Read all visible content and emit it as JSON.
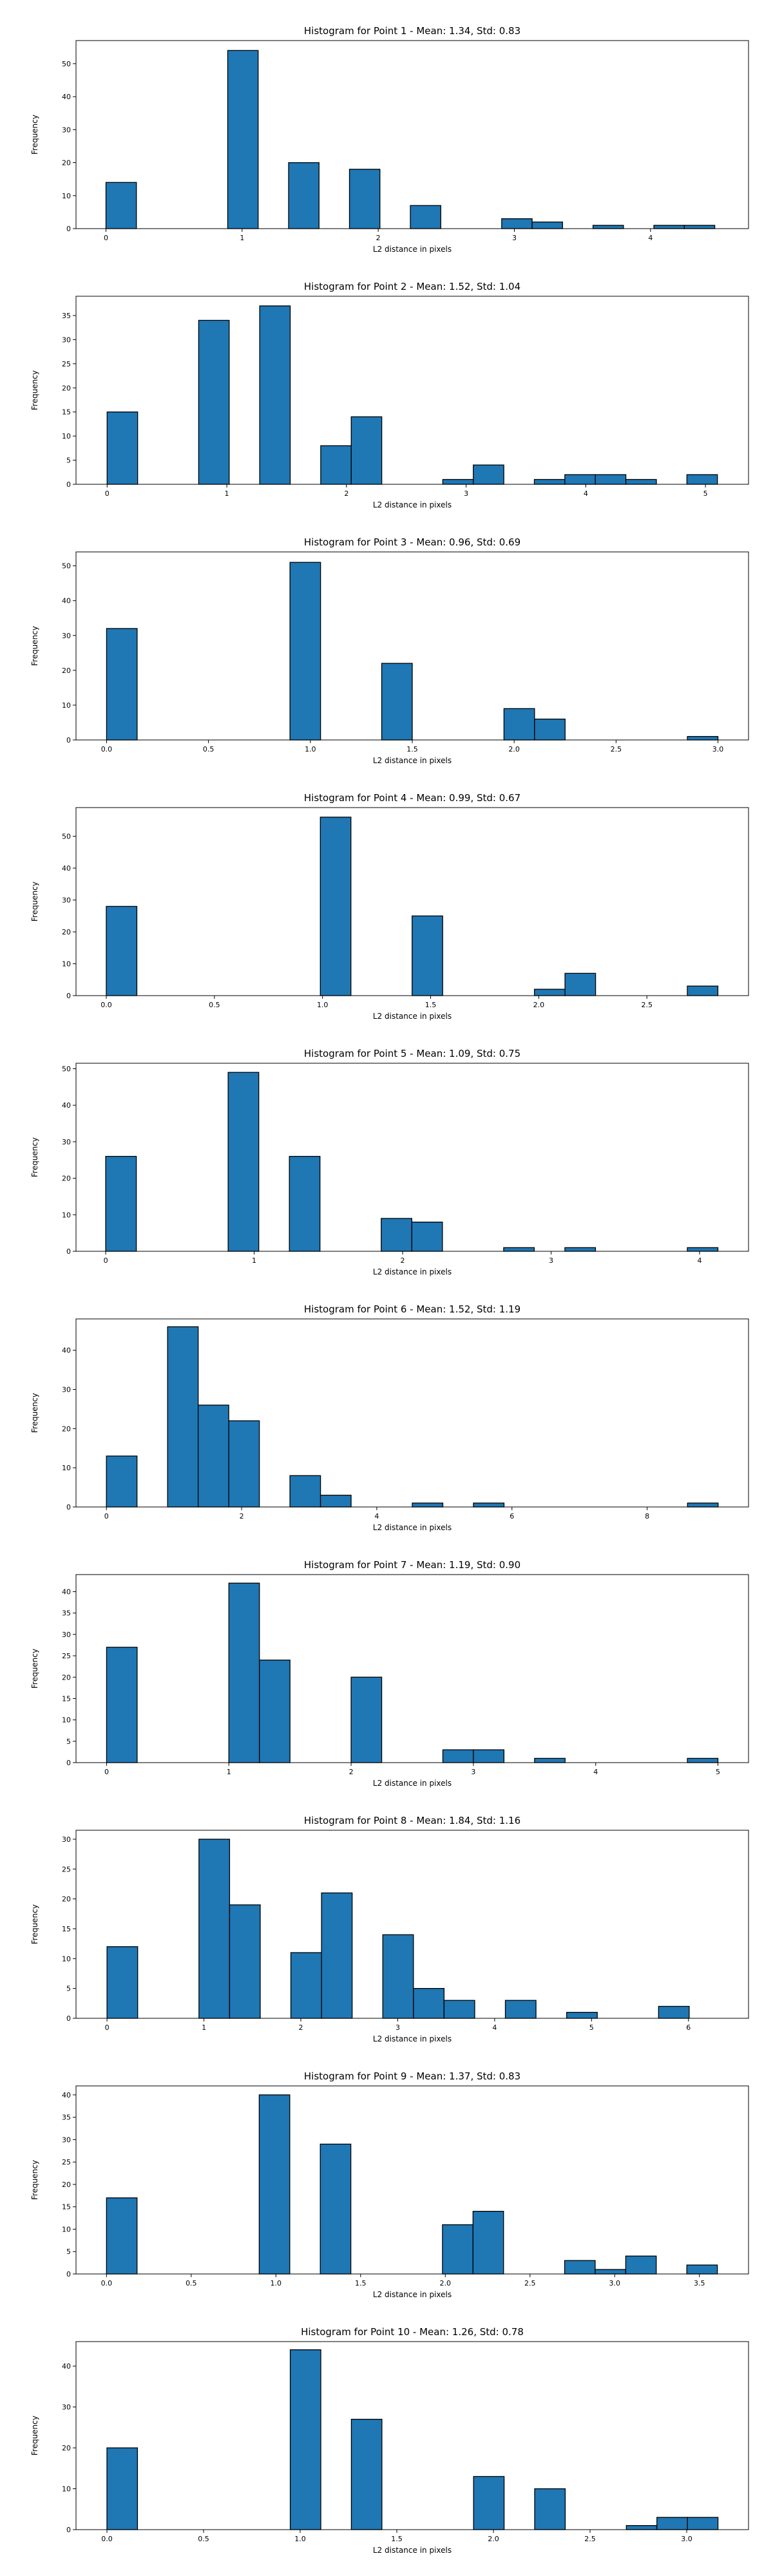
{
  "figure": {
    "bar_color": "#1f77b4",
    "edge_color": "#000000"
  },
  "chart_data": [
    {
      "type": "bar",
      "title": "Histogram for Point 1 - Mean: 1.34, Std: 0.83",
      "xlabel": "L2 distance in pixels",
      "ylabel": "Frequency",
      "xlim": [
        -0.22,
        4.72
      ],
      "ylim": [
        0,
        57
      ],
      "xticks": [
        0,
        1,
        2,
        3,
        4
      ],
      "xtick_labels": [
        "0",
        "1",
        "2",
        "3",
        "4"
      ],
      "yticks": [
        0,
        10,
        20,
        30,
        40,
        50
      ],
      "ytick_labels": [
        "0",
        "10",
        "20",
        "30",
        "40",
        "50"
      ],
      "bins": [
        {
          "x0": 0.0,
          "x1": 0.2236,
          "count": 14
        },
        {
          "x0": 0.8944,
          "x1": 1.118,
          "count": 54
        },
        {
          "x0": 1.3416,
          "x1": 1.5652,
          "count": 20
        },
        {
          "x0": 1.7888,
          "x1": 2.0124,
          "count": 18
        },
        {
          "x0": 2.236,
          "x1": 2.4596,
          "count": 7
        },
        {
          "x0": 2.9068,
          "x1": 3.1304,
          "count": 3
        },
        {
          "x0": 3.1304,
          "x1": 3.354,
          "count": 2
        },
        {
          "x0": 3.5776,
          "x1": 3.8012,
          "count": 1
        },
        {
          "x0": 4.0248,
          "x1": 4.2484,
          "count": 1
        },
        {
          "x0": 4.2484,
          "x1": 4.472,
          "count": 1
        }
      ]
    },
    {
      "type": "bar",
      "title": "Histogram for Point 2 - Mean: 1.52, Std: 1.04",
      "xlabel": "L2 distance in pixels",
      "ylabel": "Frequency",
      "xlim": [
        -0.26,
        5.36
      ],
      "ylim": [
        0,
        39
      ],
      "xticks": [
        0,
        1,
        2,
        3,
        4,
        5
      ],
      "xtick_labels": [
        "0",
        "1",
        "2",
        "3",
        "4",
        "5"
      ],
      "yticks": [
        0,
        5,
        10,
        15,
        20,
        25,
        30,
        35
      ],
      "ytick_labels": [
        "0",
        "5",
        "10",
        "15",
        "20",
        "25",
        "30",
        "35"
      ],
      "bins": [
        {
          "x0": 0.0,
          "x1": 0.255,
          "count": 15
        },
        {
          "x0": 0.765,
          "x1": 1.02,
          "count": 34
        },
        {
          "x0": 1.275,
          "x1": 1.53,
          "count": 37
        },
        {
          "x0": 1.785,
          "x1": 2.04,
          "count": 8
        },
        {
          "x0": 2.04,
          "x1": 2.295,
          "count": 14
        },
        {
          "x0": 2.805,
          "x1": 3.06,
          "count": 1
        },
        {
          "x0": 3.06,
          "x1": 3.315,
          "count": 4
        },
        {
          "x0": 3.57,
          "x1": 3.825,
          "count": 1
        },
        {
          "x0": 3.825,
          "x1": 4.08,
          "count": 2
        },
        {
          "x0": 4.08,
          "x1": 4.335,
          "count": 2
        },
        {
          "x0": 4.335,
          "x1": 4.59,
          "count": 1
        },
        {
          "x0": 4.845,
          "x1": 5.1,
          "count": 2
        }
      ]
    },
    {
      "type": "bar",
      "title": "Histogram for Point 3 - Mean: 0.96, Std: 0.69",
      "xlabel": "L2 distance in pixels",
      "ylabel": "Frequency",
      "xlim": [
        -0.15,
        3.15
      ],
      "ylim": [
        0,
        54
      ],
      "xticks": [
        0,
        0.5,
        1,
        1.5,
        2,
        2.5,
        3
      ],
      "xtick_labels": [
        "0.0",
        "0.5",
        "1.0",
        "1.5",
        "2.0",
        "2.5",
        "3.0"
      ],
      "yticks": [
        0,
        10,
        20,
        30,
        40,
        50
      ],
      "ytick_labels": [
        "0",
        "10",
        "20",
        "30",
        "40",
        "50"
      ],
      "bins": [
        {
          "x0": 0.0,
          "x1": 0.15,
          "count": 32
        },
        {
          "x0": 0.9,
          "x1": 1.05,
          "count": 51
        },
        {
          "x0": 1.35,
          "x1": 1.5,
          "count": 22
        },
        {
          "x0": 1.95,
          "x1": 2.1,
          "count": 9
        },
        {
          "x0": 2.1,
          "x1": 2.25,
          "count": 6
        },
        {
          "x0": 2.85,
          "x1": 3.0,
          "count": 1
        }
      ]
    },
    {
      "type": "bar",
      "title": "Histogram for Point 4 - Mean: 0.99, Std: 0.67",
      "xlabel": "L2 distance in pixels",
      "ylabel": "Frequency",
      "xlim": [
        -0.14,
        2.97
      ],
      "ylim": [
        0,
        59
      ],
      "xticks": [
        0,
        0.5,
        1,
        1.5,
        2,
        2.5
      ],
      "xtick_labels": [
        "0.0",
        "0.5",
        "1.0",
        "1.5",
        "2.0",
        "2.5"
      ],
      "yticks": [
        0,
        10,
        20,
        30,
        40,
        50
      ],
      "ytick_labels": [
        "0",
        "10",
        "20",
        "30",
        "40",
        "50"
      ],
      "bins": [
        {
          "x0": 0.0,
          "x1": 0.1414,
          "count": 28
        },
        {
          "x0": 0.9899,
          "x1": 1.1313,
          "count": 56
        },
        {
          "x0": 1.4142,
          "x1": 1.5556,
          "count": 25
        },
        {
          "x0": 1.9799,
          "x1": 2.1213,
          "count": 2
        },
        {
          "x0": 2.1213,
          "x1": 2.2627,
          "count": 7
        },
        {
          "x0": 2.687,
          "x1": 2.8284,
          "count": 3
        }
      ]
    },
    {
      "type": "bar",
      "title": "Histogram for Point 5 - Mean: 1.09, Std: 0.75",
      "xlabel": "L2 distance in pixels",
      "ylabel": "Frequency",
      "xlim": [
        -0.2,
        4.33
      ],
      "ylim": [
        0,
        51.5
      ],
      "xticks": [
        0,
        1,
        2,
        3,
        4
      ],
      "xtick_labels": [
        "0",
        "1",
        "2",
        "3",
        "4"
      ],
      "yticks": [
        0,
        10,
        20,
        30,
        40,
        50
      ],
      "ytick_labels": [
        "0",
        "10",
        "20",
        "30",
        "40",
        "50"
      ],
      "bins": [
        {
          "x0": 0.0,
          "x1": 0.2062,
          "count": 26
        },
        {
          "x0": 0.8248,
          "x1": 1.031,
          "count": 49
        },
        {
          "x0": 1.2372,
          "x1": 1.4434,
          "count": 26
        },
        {
          "x0": 1.8558,
          "x1": 2.062,
          "count": 9
        },
        {
          "x0": 2.062,
          "x1": 2.2682,
          "count": 8
        },
        {
          "x0": 2.6806,
          "x1": 2.8868,
          "count": 1
        },
        {
          "x0": 3.093,
          "x1": 3.2992,
          "count": 1
        },
        {
          "x0": 3.9178,
          "x1": 4.124,
          "count": 1
        }
      ]
    },
    {
      "type": "bar",
      "title": "Histogram for Point 6 - Mean: 1.52, Std: 1.19",
      "xlabel": "L2 distance in pixels",
      "ylabel": "Frequency",
      "xlim": [
        -0.45,
        9.5
      ],
      "ylim": [
        0,
        48
      ],
      "xticks": [
        0,
        2,
        4,
        6,
        8
      ],
      "xtick_labels": [
        "0",
        "2",
        "4",
        "6",
        "8"
      ],
      "yticks": [
        0,
        10,
        20,
        30,
        40
      ],
      "ytick_labels": [
        "0",
        "10",
        "20",
        "30",
        "40"
      ],
      "bins": [
        {
          "x0": 0.0,
          "x1": 0.4525,
          "count": 13
        },
        {
          "x0": 0.905,
          "x1": 1.3575,
          "count": 46
        },
        {
          "x0": 1.3575,
          "x1": 1.81,
          "count": 26
        },
        {
          "x0": 1.81,
          "x1": 2.2625,
          "count": 22
        },
        {
          "x0": 2.715,
          "x1": 3.1675,
          "count": 8
        },
        {
          "x0": 3.1675,
          "x1": 3.62,
          "count": 3
        },
        {
          "x0": 4.525,
          "x1": 4.9775,
          "count": 1
        },
        {
          "x0": 5.43,
          "x1": 5.8825,
          "count": 1
        },
        {
          "x0": 8.5975,
          "x1": 9.05,
          "count": 1
        }
      ]
    },
    {
      "type": "bar",
      "title": "Histogram for Point 7 - Mean: 1.19, Std: 0.90",
      "xlabel": "L2 distance in pixels",
      "ylabel": "Frequency",
      "xlim": [
        -0.25,
        5.25
      ],
      "ylim": [
        0,
        44
      ],
      "xticks": [
        0,
        1,
        2,
        3,
        4,
        5
      ],
      "xtick_labels": [
        "0",
        "1",
        "2",
        "3",
        "4",
        "5"
      ],
      "yticks": [
        0,
        5,
        10,
        15,
        20,
        25,
        30,
        35,
        40
      ],
      "ytick_labels": [
        "0",
        "5",
        "10",
        "15",
        "20",
        "25",
        "30",
        "35",
        "40"
      ],
      "bins": [
        {
          "x0": 0.0,
          "x1": 0.25,
          "count": 27
        },
        {
          "x0": 1.0,
          "x1": 1.25,
          "count": 42
        },
        {
          "x0": 1.25,
          "x1": 1.5,
          "count": 24
        },
        {
          "x0": 2.0,
          "x1": 2.25,
          "count": 20
        },
        {
          "x0": 2.75,
          "x1": 3.0,
          "count": 3
        },
        {
          "x0": 3.0,
          "x1": 3.25,
          "count": 3
        },
        {
          "x0": 3.5,
          "x1": 3.75,
          "count": 1
        },
        {
          "x0": 4.75,
          "x1": 5.0,
          "count": 1
        }
      ]
    },
    {
      "type": "bar",
      "title": "Histogram for Point 8 - Mean: 1.84, Std: 1.16",
      "xlabel": "L2 distance in pixels",
      "ylabel": "Frequency",
      "xlim": [
        -0.32,
        6.62
      ],
      "ylim": [
        0,
        31.5
      ],
      "xticks": [
        0,
        1,
        2,
        3,
        4,
        5,
        6
      ],
      "xtick_labels": [
        "0",
        "1",
        "2",
        "3",
        "4",
        "5",
        "6"
      ],
      "yticks": [
        0,
        5,
        10,
        15,
        20,
        25,
        30
      ],
      "ytick_labels": [
        "0",
        "5",
        "10",
        "15",
        "20",
        "25",
        "30"
      ],
      "bins": [
        {
          "x0": 0.0,
          "x1": 0.3162,
          "count": 12
        },
        {
          "x0": 0.9486,
          "x1": 1.2648,
          "count": 30
        },
        {
          "x0": 1.2648,
          "x1": 1.581,
          "count": 19
        },
        {
          "x0": 1.8972,
          "x1": 2.2134,
          "count": 11
        },
        {
          "x0": 2.2134,
          "x1": 2.5296,
          "count": 21
        },
        {
          "x0": 2.8458,
          "x1": 3.162,
          "count": 14
        },
        {
          "x0": 3.162,
          "x1": 3.4782,
          "count": 5
        },
        {
          "x0": 3.4782,
          "x1": 3.7944,
          "count": 3
        },
        {
          "x0": 4.1106,
          "x1": 4.4268,
          "count": 3
        },
        {
          "x0": 4.743,
          "x1": 5.0592,
          "count": 1
        },
        {
          "x0": 5.6916,
          "x1": 6.0078,
          "count": 2
        }
      ]
    },
    {
      "type": "bar",
      "title": "Histogram for Point 9 - Mean: 1.37, Std: 0.83",
      "xlabel": "L2 distance in pixels",
      "ylabel": "Frequency",
      "xlim": [
        -0.18,
        3.79
      ],
      "ylim": [
        0,
        42
      ],
      "xticks": [
        0,
        0.5,
        1,
        1.5,
        2,
        2.5,
        3,
        3.5
      ],
      "xtick_labels": [
        "0.0",
        "0.5",
        "1.0",
        "1.5",
        "2.0",
        "2.5",
        "3.0",
        "3.5"
      ],
      "yticks": [
        0,
        5,
        10,
        15,
        20,
        25,
        30,
        35,
        40
      ],
      "ytick_labels": [
        "0",
        "5",
        "10",
        "15",
        "20",
        "25",
        "30",
        "35",
        "40"
      ],
      "bins": [
        {
          "x0": 0.0,
          "x1": 0.1803,
          "count": 17
        },
        {
          "x0": 0.9015,
          "x1": 1.0818,
          "count": 40
        },
        {
          "x0": 1.2621,
          "x1": 1.4424,
          "count": 29
        },
        {
          "x0": 1.9833,
          "x1": 2.1636,
          "count": 11
        },
        {
          "x0": 2.1636,
          "x1": 2.3439,
          "count": 14
        },
        {
          "x0": 2.7045,
          "x1": 2.8848,
          "count": 3
        },
        {
          "x0": 2.8848,
          "x1": 3.0651,
          "count": 1
        },
        {
          "x0": 3.0651,
          "x1": 3.2454,
          "count": 4
        },
        {
          "x0": 3.4257,
          "x1": 3.606,
          "count": 2
        }
      ]
    },
    {
      "type": "bar",
      "title": "Histogram for Point 10 - Mean: 1.26, Std: 0.78",
      "xlabel": "L2 distance in pixels",
      "ylabel": "Frequency",
      "xlim": [
        -0.16,
        3.32
      ],
      "ylim": [
        0,
        46
      ],
      "xticks": [
        0,
        0.5,
        1,
        1.5,
        2,
        2.5,
        3
      ],
      "xtick_labels": [
        "0.0",
        "0.5",
        "1.0",
        "1.5",
        "2.0",
        "2.5",
        "3.0"
      ],
      "yticks": [
        0,
        10,
        20,
        30,
        40
      ],
      "ytick_labels": [
        "0",
        "10",
        "20",
        "30",
        "40"
      ],
      "bins": [
        {
          "x0": 0.0,
          "x1": 0.1581,
          "count": 20
        },
        {
          "x0": 0.9486,
          "x1": 1.1067,
          "count": 44
        },
        {
          "x0": 1.2648,
          "x1": 1.4229,
          "count": 27
        },
        {
          "x0": 1.8972,
          "x1": 2.0553,
          "count": 13
        },
        {
          "x0": 2.2134,
          "x1": 2.3715,
          "count": 10
        },
        {
          "x0": 2.6877,
          "x1": 2.8458,
          "count": 1
        },
        {
          "x0": 2.8458,
          "x1": 3.0039,
          "count": 3
        },
        {
          "x0": 3.0039,
          "x1": 3.162,
          "count": 3
        }
      ]
    }
  ]
}
